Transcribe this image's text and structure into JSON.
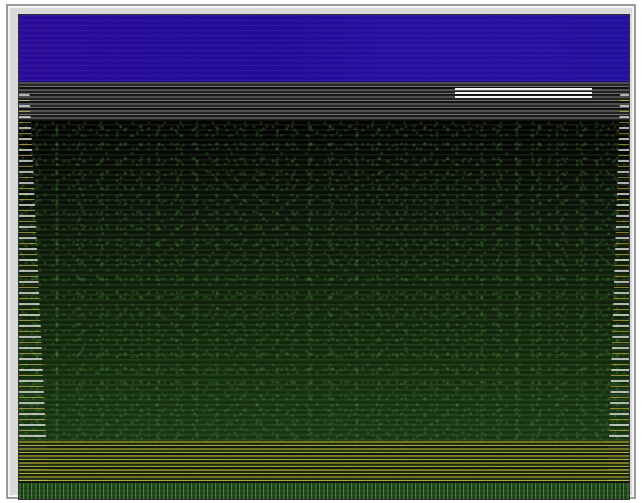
{
  "screen": {
    "type": "distorted video frame",
    "colors": {
      "top_band": "#2811a2",
      "field_green": "#173612",
      "stripe_yellow": "#b4b23c",
      "highlight_white": "#ffffff"
    },
    "icons": []
  }
}
